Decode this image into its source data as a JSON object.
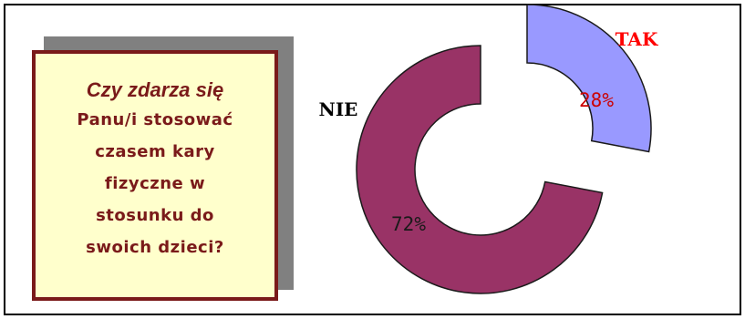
{
  "question": {
    "line1": "Czy zdarza się",
    "lines": [
      "Panu/i stosować",
      "czasem kary",
      "fizyczne w",
      "stosunku do",
      "swoich dzieci?"
    ]
  },
  "colors": {
    "box_fill": "#ffffcc",
    "box_border": "#7a1a1a",
    "tak_fill": "#9999ff",
    "nie_fill": "#993366",
    "tak_label": "#ff0000",
    "nie_label": "#000000"
  },
  "chart_data": {
    "type": "pie",
    "variant": "donut-exploded",
    "categories": [
      "TAK",
      "NIE"
    ],
    "values": [
      28,
      72
    ],
    "data_labels": [
      "28%",
      "72%"
    ]
  }
}
